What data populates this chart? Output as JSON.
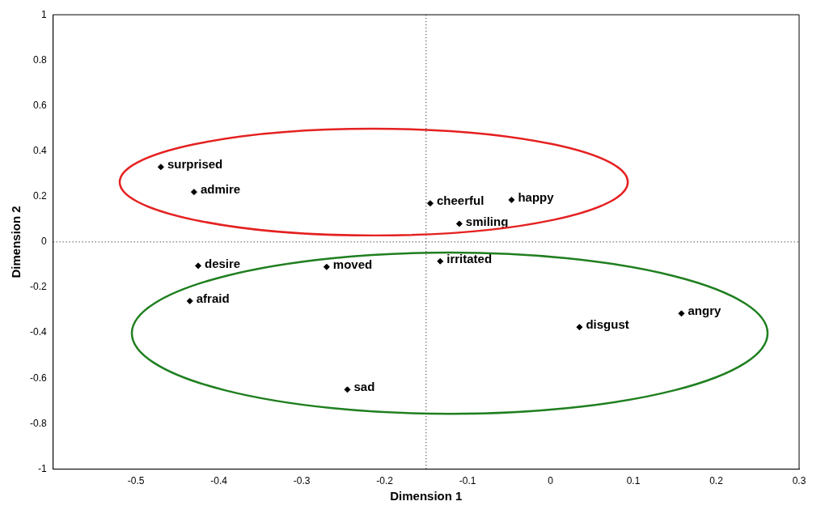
{
  "chart_data": {
    "type": "scatter",
    "xlabel": "Dimension 1",
    "ylabel": "Dimension 2",
    "xlim": [
      -0.6,
      0.3
    ],
    "xticks": [
      -0.5,
      -0.4,
      -0.3,
      -0.2,
      -0.1,
      0,
      0.1,
      0.2,
      0.3
    ],
    "ylim": [
      -1,
      1
    ],
    "yticks": [
      -1,
      -0.8,
      -0.6,
      -0.4,
      -0.2,
      0,
      0.2,
      0.4,
      0.6,
      0.8,
      1
    ],
    "grid": false,
    "legend": false,
    "series": [
      {
        "type": "scatter",
        "color": "#000000",
        "marker": "diamond",
        "x": [
          -0.47,
          -0.43,
          -0.145,
          -0.047,
          -0.11,
          -0.425,
          -0.27,
          -0.133,
          -0.435,
          0.035,
          0.158,
          -0.245
        ],
        "values": [
          0.33,
          0.22,
          0.17,
          0.185,
          0.08,
          -0.105,
          -0.11,
          -0.085,
          -0.26,
          -0.375,
          -0.315,
          -0.65
        ]
      }
    ],
    "ref_lines": [
      {
        "axis": "x",
        "value": -0.15,
        "color": "#000000",
        "line_style": "dotted"
      },
      {
        "axis": "y",
        "value": 0,
        "color": "#000000",
        "line_style": "dotted"
      }
    ],
    "annotations": [
      {
        "text": "surprised",
        "x": -0.47,
        "y": 0.33
      },
      {
        "text": "admire",
        "x": -0.43,
        "y": 0.22
      },
      {
        "text": "cheerful",
        "x": -0.145,
        "y": 0.17
      },
      {
        "text": "happy",
        "x": -0.047,
        "y": 0.185
      },
      {
        "text": "smiling",
        "x": -0.11,
        "y": 0.08
      },
      {
        "text": "desire",
        "x": -0.425,
        "y": -0.105
      },
      {
        "text": "moved",
        "x": -0.27,
        "y": -0.11
      },
      {
        "text": "irritated",
        "x": -0.133,
        "y": -0.085
      },
      {
        "text": "afraid",
        "x": -0.435,
        "y": -0.26
      },
      {
        "text": "disgust",
        "x": 0.035,
        "y": -0.375
      },
      {
        "text": "angry",
        "x": 0.158,
        "y": -0.315
      },
      {
        "text": "sad",
        "x": -0.245,
        "y": -0.65
      }
    ]
  }
}
